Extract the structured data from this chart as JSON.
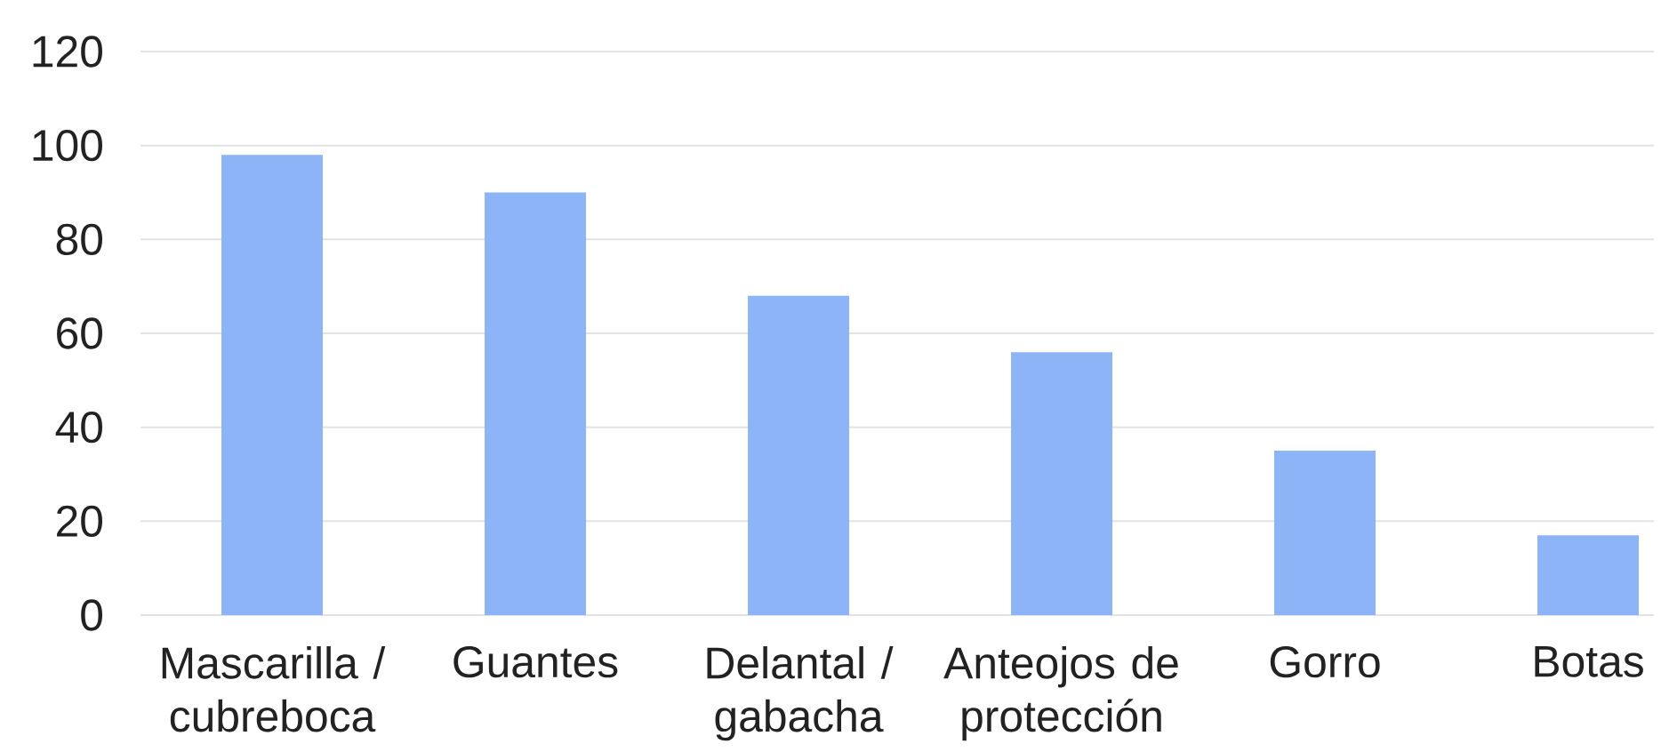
{
  "chart_data": {
    "type": "bar",
    "categories": [
      "Mascarilla / cubreboca",
      "Guantes",
      "Delantal / gabacha",
      "Anteojos de protección",
      "Gorro",
      "Botas"
    ],
    "values": [
      98,
      90,
      68,
      56,
      35,
      17
    ],
    "color": "#8cb4f6",
    "ylim": [
      0,
      120
    ],
    "yticks": [
      0,
      20,
      40,
      60,
      80,
      100,
      120
    ],
    "grid": "y"
  }
}
